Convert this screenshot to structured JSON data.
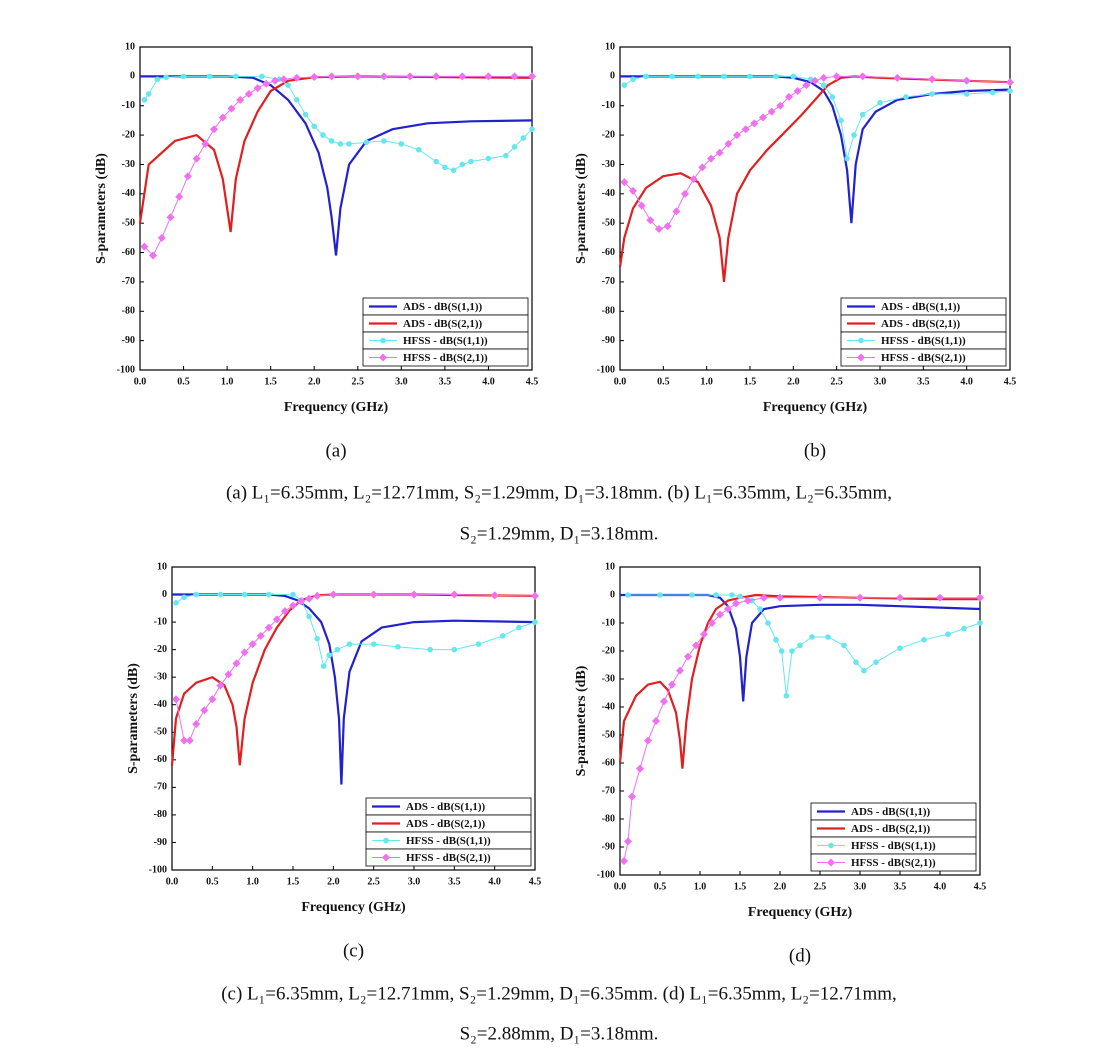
{
  "chart_data": [
    {
      "type": "line",
      "label": "(a)",
      "xlabel": "Frequency (GHz)",
      "ylabel": "S-parameters (dB)",
      "legend": "lower right",
      "xlim": [
        0,
        4.5
      ],
      "ylim": [
        -100,
        10
      ],
      "xticks": [
        {
          "value": 0,
          "label": "0.0"
        },
        0.5,
        {
          "value": 1,
          "label": "1.0"
        },
        1.5,
        {
          "value": 2,
          "label": "2.0"
        },
        2.5,
        {
          "value": 3,
          "label": "3.0"
        },
        3.5,
        {
          "value": 4,
          "label": "4.0"
        },
        4.5
      ],
      "yticks": [
        10,
        0,
        -10,
        -20,
        -30,
        -40,
        -50,
        -60,
        -70,
        -80,
        -90,
        -100
      ],
      "series": [
        {
          "name": "ADS - dB(S(1,1))",
          "color": "#2222cc",
          "x": [
            0,
            0.5,
            1.0,
            1.3,
            1.5,
            1.7,
            1.9,
            2.05,
            2.15,
            2.2,
            2.25,
            2.3,
            2.4,
            2.6,
            2.9,
            3.3,
            3.8,
            4.5
          ],
          "values": [
            0,
            0,
            0,
            -0.5,
            -3,
            -8,
            -16,
            -26,
            -38,
            -48,
            -61,
            -45,
            -30,
            -22,
            -18,
            -16,
            -15.3,
            -15
          ]
        },
        {
          "name": "ADS - dB(S(2,1))",
          "color": "#e02020",
          "x": [
            0,
            0.1,
            0.4,
            0.65,
            0.85,
            0.95,
            1.04,
            1.1,
            1.2,
            1.35,
            1.5,
            1.7,
            2.0,
            2.5,
            4.5
          ],
          "values": [
            -50,
            -30,
            -22,
            -20,
            -25,
            -35,
            -53,
            -35,
            -22,
            -12,
            -5,
            -1.5,
            -0.3,
            0,
            -0.5
          ]
        },
        {
          "name": "HFSS - dB(S(1,1))",
          "color": "#66e6ee",
          "marker": "circle",
          "x": [
            0.05,
            0.1,
            0.2,
            0.3,
            0.5,
            0.8,
            1.1,
            1.4,
            1.6,
            1.7,
            1.8,
            1.9,
            2.0,
            2.1,
            2.2,
            2.3,
            2.4,
            2.6,
            2.8,
            3.0,
            3.2,
            3.4,
            3.5,
            3.6,
            3.7,
            3.8,
            4.0,
            4.2,
            4.3,
            4.4,
            4.5
          ],
          "values": [
            -8,
            -6,
            -1,
            -0.3,
            0,
            0,
            0,
            0,
            -1,
            -3,
            -8,
            -13,
            -17,
            -20,
            -22,
            -23,
            -23,
            -22.5,
            -22,
            -23,
            -25,
            -29,
            -31,
            -32,
            -30,
            -29,
            -28,
            -27,
            -24,
            -21,
            -18
          ]
        },
        {
          "name": "HFSS - dB(S(2,1))",
          "color": "#f070f0",
          "marker": "diamond",
          "x": [
            0.05,
            0.15,
            0.25,
            0.35,
            0.45,
            0.55,
            0.65,
            0.75,
            0.85,
            0.95,
            1.05,
            1.15,
            1.25,
            1.35,
            1.45,
            1.55,
            1.65,
            1.8,
            2.0,
            2.2,
            2.5,
            2.8,
            3.1,
            3.4,
            3.7,
            4.0,
            4.3,
            4.5
          ],
          "values": [
            -58,
            -61,
            -55,
            -48,
            -41,
            -34,
            -28,
            -23,
            -18,
            -14,
            -11,
            -8,
            -6,
            -4,
            -2.5,
            -1.5,
            -1,
            -0.5,
            -0.2,
            0,
            0,
            0,
            0,
            0,
            0,
            0,
            0,
            0
          ]
        }
      ]
    },
    {
      "type": "line",
      "label": "(b)",
      "xlabel": "Frequency (GHz)",
      "ylabel": "S-parameters (dB)",
      "legend": "lower right",
      "xlim": [
        0,
        4.5
      ],
      "ylim": [
        -100,
        10
      ],
      "xticks": [
        {
          "value": 0,
          "label": "0.0"
        },
        0.5,
        {
          "value": 1,
          "label": "1.0"
        },
        1.5,
        {
          "value": 2,
          "label": "2.0"
        },
        2.5,
        {
          "value": 3,
          "label": "3.0"
        },
        3.5,
        {
          "value": 4,
          "label": "4.0"
        },
        4.5
      ],
      "yticks": [
        10,
        0,
        -10,
        -20,
        -30,
        -40,
        -50,
        -60,
        -70,
        -80,
        -90,
        -100
      ],
      "series": [
        {
          "name": "ADS - dB(S(1,1))",
          "color": "#2222cc",
          "x": [
            0,
            1.0,
            1.8,
            2.0,
            2.2,
            2.35,
            2.45,
            2.55,
            2.62,
            2.67,
            2.72,
            2.8,
            2.95,
            3.2,
            3.6,
            4.0,
            4.5
          ],
          "values": [
            0,
            0,
            0,
            -0.5,
            -2,
            -5,
            -10,
            -20,
            -32,
            -50,
            -30,
            -18,
            -12,
            -8,
            -6,
            -5,
            -4.5
          ]
        },
        {
          "name": "ADS - dB(S(2,1))",
          "color": "#e02020",
          "x": [
            0,
            0.05,
            0.15,
            0.3,
            0.5,
            0.7,
            0.9,
            1.05,
            1.15,
            1.2,
            1.25,
            1.35,
            1.5,
            1.7,
            1.9,
            2.1,
            2.25,
            2.4,
            2.55,
            2.7,
            3.0,
            3.5,
            4.0,
            4.5
          ],
          "values": [
            -65,
            -55,
            -45,
            -38,
            -34,
            -33,
            -36,
            -44,
            -55,
            -70,
            -55,
            -40,
            -32,
            -25,
            -19,
            -13,
            -8,
            -3,
            -0.5,
            0,
            -0.5,
            -1,
            -1.5,
            -2
          ]
        },
        {
          "name": "HFSS - dB(S(1,1))",
          "color": "#66e6ee",
          "marker": "circle",
          "x": [
            0.05,
            0.15,
            0.3,
            0.6,
            0.9,
            1.2,
            1.5,
            1.8,
            2.0,
            2.2,
            2.35,
            2.45,
            2.55,
            2.62,
            2.7,
            2.8,
            3.0,
            3.3,
            3.6,
            4.0,
            4.3,
            4.5
          ],
          "values": [
            -3,
            -1,
            0,
            0,
            0,
            0,
            0,
            0,
            0,
            -1,
            -3,
            -7,
            -15,
            -28,
            -20,
            -13,
            -9,
            -7,
            -6,
            -6,
            -5.5,
            -5
          ]
        },
        {
          "name": "HFSS - dB(S(2,1))",
          "color": "#f070f0",
          "marker": "diamond",
          "x": [
            0.05,
            0.15,
            0.25,
            0.35,
            0.45,
            0.55,
            0.65,
            0.75,
            0.85,
            0.95,
            1.05,
            1.15,
            1.25,
            1.35,
            1.45,
            1.55,
            1.65,
            1.75,
            1.85,
            1.95,
            2.05,
            2.15,
            2.25,
            2.35,
            2.5,
            2.8,
            3.2,
            3.6,
            4.0,
            4.5
          ],
          "values": [
            -36,
            -39,
            -44,
            -49,
            -52,
            -51,
            -46,
            -40,
            -35,
            -31,
            -28,
            -26,
            -23,
            -20,
            -18,
            -16,
            -14,
            -12,
            -10,
            -7,
            -5,
            -3,
            -1.5,
            -0.5,
            0,
            0,
            -0.5,
            -1,
            -1.5,
            -2
          ]
        }
      ]
    },
    {
      "type": "line",
      "label": "(c)",
      "xlabel": "Frequency (GHz)",
      "ylabel": "S-parameters (dB)",
      "legend": "lower right",
      "xlim": [
        0,
        4.5
      ],
      "ylim": [
        -100,
        10
      ],
      "xticks": [
        {
          "value": 0,
          "label": "0.0"
        },
        0.5,
        {
          "value": 1,
          "label": "1.0"
        },
        1.5,
        {
          "value": 2,
          "label": "2.0"
        },
        2.5,
        {
          "value": 3,
          "label": "3.0"
        },
        3.5,
        {
          "value": 4,
          "label": "4.0"
        },
        4.5
      ],
      "yticks": [
        10,
        0,
        -10,
        -20,
        -30,
        -40,
        -50,
        -60,
        -70,
        -80,
        -90,
        -100
      ],
      "series": [
        {
          "name": "ADS - dB(S(1,1))",
          "color": "#2222cc",
          "x": [
            0,
            0.6,
            1.2,
            1.4,
            1.55,
            1.7,
            1.85,
            1.95,
            2.02,
            2.07,
            2.1,
            2.13,
            2.2,
            2.35,
            2.6,
            3.0,
            3.5,
            4.5
          ],
          "values": [
            0,
            0,
            0,
            -0.5,
            -2,
            -5,
            -10,
            -18,
            -30,
            -45,
            -69,
            -45,
            -28,
            -17,
            -12,
            -10,
            -9.5,
            -10
          ]
        },
        {
          "name": "ADS - dB(S(2,1))",
          "color": "#e02020",
          "x": [
            0,
            0.05,
            0.15,
            0.3,
            0.5,
            0.65,
            0.75,
            0.8,
            0.84,
            0.9,
            1.0,
            1.15,
            1.3,
            1.45,
            1.6,
            1.8,
            2.0,
            3.0,
            4.5
          ],
          "values": [
            -62,
            -45,
            -36,
            -32,
            -30,
            -33,
            -40,
            -48,
            -62,
            -45,
            -32,
            -20,
            -12,
            -6,
            -2,
            -0.3,
            0,
            0,
            -0.5
          ]
        },
        {
          "name": "HFSS - dB(S(1,1))",
          "color": "#66e6ee",
          "marker": "circle",
          "x": [
            0.05,
            0.15,
            0.3,
            0.6,
            0.9,
            1.2,
            1.5,
            1.6,
            1.7,
            1.8,
            1.88,
            1.95,
            2.05,
            2.2,
            2.5,
            2.8,
            3.2,
            3.5,
            3.8,
            4.1,
            4.3,
            4.5
          ],
          "values": [
            -3,
            -1,
            0,
            0,
            0,
            0,
            0,
            -2,
            -8,
            -16,
            -26,
            -22,
            -20,
            -18,
            -18,
            -19,
            -20,
            -20,
            -18,
            -15,
            -12,
            -10
          ]
        },
        {
          "name": "HFSS - dB(S(2,1))",
          "color": "#f070f0",
          "marker": "diamond",
          "x": [
            0.05,
            0.15,
            0.22,
            0.3,
            0.4,
            0.5,
            0.6,
            0.7,
            0.8,
            0.9,
            1.0,
            1.1,
            1.2,
            1.3,
            1.4,
            1.5,
            1.6,
            1.7,
            1.8,
            2.0,
            2.5,
            3.0,
            3.5,
            4.0,
            4.5
          ],
          "values": [
            -38,
            -53,
            -53,
            -47,
            -42,
            -38,
            -33,
            -29,
            -25,
            -21,
            -18,
            -15,
            -12,
            -9,
            -6,
            -4,
            -2.5,
            -1.5,
            -0.5,
            0,
            0,
            0,
            0,
            -0.3,
            -0.5
          ]
        }
      ]
    },
    {
      "type": "line",
      "label": "(d)",
      "xlabel": "Frequency (GHz)",
      "ylabel": "S-parameters (dB)",
      "legend": "lower right",
      "xlim": [
        0,
        4.5
      ],
      "ylim": [
        -100,
        10
      ],
      "xticks": [
        {
          "value": 0,
          "label": "0.0"
        },
        0.5,
        {
          "value": 1,
          "label": "1.0"
        },
        1.5,
        {
          "value": 2,
          "label": "2.0"
        },
        2.5,
        {
          "value": 3,
          "label": "3.0"
        },
        3.5,
        {
          "value": 4,
          "label": "4.0"
        },
        4.5
      ],
      "yticks": [
        10,
        0,
        -10,
        -20,
        -30,
        -40,
        -50,
        -60,
        -70,
        -80,
        -90,
        -100
      ],
      "series": [
        {
          "name": "ADS - dB(S(1,1))",
          "color": "#2222cc",
          "x": [
            0,
            0.6,
            1.1,
            1.25,
            1.35,
            1.45,
            1.5,
            1.54,
            1.58,
            1.65,
            1.8,
            2.0,
            2.5,
            3.0,
            3.5,
            4.0,
            4.5
          ],
          "values": [
            0,
            0,
            0,
            -1,
            -4,
            -12,
            -22,
            -38,
            -22,
            -10,
            -5,
            -4,
            -3.5,
            -3.5,
            -4,
            -4.5,
            -5
          ]
        },
        {
          "name": "ADS - dB(S(2,1))",
          "color": "#e02020",
          "x": [
            0,
            0.05,
            0.2,
            0.35,
            0.5,
            0.6,
            0.7,
            0.75,
            0.78,
            0.83,
            0.9,
            1.0,
            1.1,
            1.2,
            1.35,
            1.5,
            1.7,
            2.0,
            3.0,
            4.0,
            4.5
          ],
          "values": [
            -60,
            -45,
            -36,
            -32,
            -31,
            -34,
            -42,
            -52,
            -62,
            -45,
            -30,
            -18,
            -10,
            -5,
            -2,
            -1,
            0,
            -0.5,
            -1,
            -1.5,
            -1.5
          ]
        },
        {
          "name": "HFSS - dB(S(1,1))",
          "color": "#66e6ee",
          "marker": "circle",
          "x": [
            0.1,
            0.5,
            0.9,
            1.2,
            1.4,
            1.5,
            1.65,
            1.75,
            1.85,
            1.95,
            2.02,
            2.08,
            2.15,
            2.25,
            2.4,
            2.6,
            2.8,
            2.95,
            3.05,
            3.2,
            3.5,
            3.8,
            4.1,
            4.3,
            4.5
          ],
          "values": [
            0,
            0,
            0,
            0,
            0,
            -0.5,
            -2,
            -5,
            -10,
            -16,
            -20,
            -36,
            -20,
            -18,
            -15,
            -15,
            -18,
            -24,
            -27,
            -24,
            -19,
            -16,
            -14,
            -12,
            -10
          ]
        },
        {
          "name": "HFSS - dB(S(2,1))",
          "color": "#f070f0",
          "marker": "diamond",
          "x": [
            0.05,
            0.1,
            0.15,
            0.25,
            0.35,
            0.45,
            0.55,
            0.65,
            0.75,
            0.85,
            0.95,
            1.05,
            1.15,
            1.25,
            1.35,
            1.45,
            1.6,
            1.8,
            2.0,
            2.5,
            3.0,
            3.5,
            4.0,
            4.5
          ],
          "values": [
            -95,
            -88,
            -72,
            -62,
            -52,
            -45,
            -38,
            -32,
            -27,
            -22,
            -18,
            -14,
            -10,
            -7,
            -5,
            -3,
            -2,
            -1,
            -1,
            -1,
            -1,
            -1,
            -1,
            -1
          ]
        }
      ]
    }
  ],
  "captions": [
    [
      "(a) L₁=6.35mm, L₂=12.71mm, S₂=1.29mm, D₁=3.18mm. (b) L₁=6.35mm, L₂=6.35mm,",
      "S₂=1.29mm, D₁=3.18mm."
    ],
    [
      "(c) L₁=6.35mm, L₂=12.71mm, S₂=1.29mm, D₁=6.35mm. (d) L₁=6.35mm, L₂=12.71mm,",
      "S₂=2.88mm, D₁=3.18mm."
    ]
  ]
}
